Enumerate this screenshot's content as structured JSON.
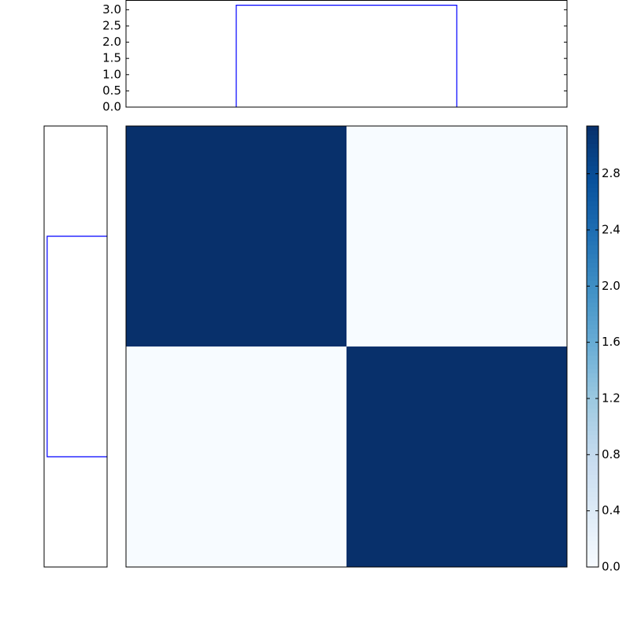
{
  "chart_data": [
    {
      "type": "line",
      "role": "top-dendrogram",
      "ylim": [
        0,
        3.3
      ],
      "yticks": [
        "0.0",
        "0.5",
        "1.0",
        "1.5",
        "2.0",
        "2.5",
        "3.0"
      ],
      "segments": [
        {
          "x": [
            0.5,
            0.5,
            1.5,
            1.5
          ],
          "y": [
            0,
            3.14,
            3.14,
            0
          ]
        }
      ],
      "xlim": [
        0,
        2
      ],
      "color": "#0000ff"
    },
    {
      "type": "line",
      "role": "left-dendrogram",
      "xlim": [
        3.3,
        0
      ],
      "segments": [
        {
          "x": [
            0,
            3.14,
            3.14,
            0
          ],
          "y": [
            0.5,
            0.5,
            1.5,
            1.5
          ]
        }
      ],
      "ylim": [
        0,
        2
      ],
      "color": "#0000ff"
    },
    {
      "type": "heatmap",
      "values": [
        [
          3.14,
          0
        ],
        [
          0,
          3.14
        ]
      ],
      "colormap": "Blues",
      "vmin": 0,
      "vmax": 3.14,
      "colorbar_ticks": [
        "0.0",
        "0.4",
        "0.8",
        "1.2",
        "1.6",
        "2.0",
        "2.4",
        "2.8"
      ]
    }
  ]
}
